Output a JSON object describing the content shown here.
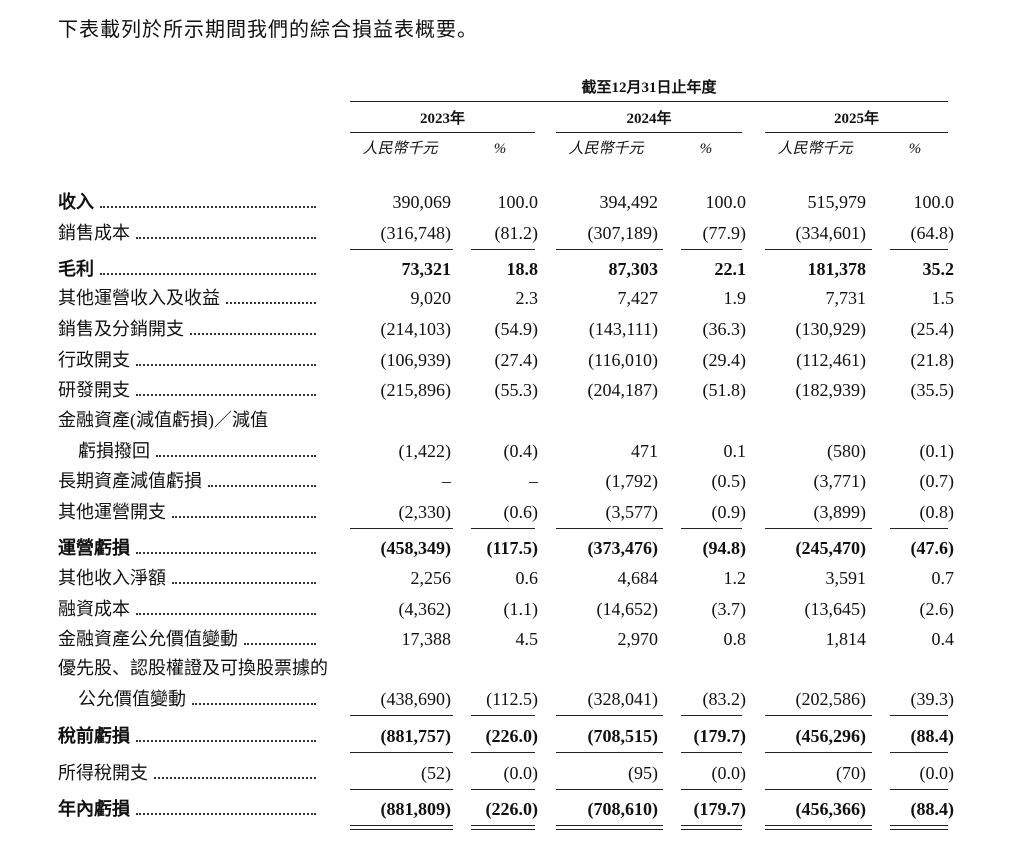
{
  "intro": "下表載列於所示期間我們的綜合損益表概要。",
  "header": {
    "period": "截至12月31日止年度",
    "columns": [
      {
        "year": "2023年",
        "unit": "人民幣千元",
        "pct_unit": "%"
      },
      {
        "year": "2024年",
        "unit": "人民幣千元",
        "pct_unit": "%"
      },
      {
        "year": "2025年",
        "unit": "人民幣千元",
        "pct_unit": "%"
      }
    ]
  },
  "rows": [
    {
      "label": [
        "收入"
      ],
      "values": [
        "390,069",
        "100.0",
        "394,492",
        "100.0",
        "515,979",
        "100.0"
      ]
    },
    {
      "label": [
        "銷售成本"
      ],
      "values": [
        "(316,748)",
        "(81.2)",
        "(307,189)",
        "(77.9)",
        "(334,601)",
        "(64.8)"
      ]
    },
    {
      "label": [
        "毛利"
      ],
      "values": [
        "73,321",
        "18.8",
        "87,303",
        "22.1",
        "181,378",
        "35.2"
      ]
    },
    {
      "label": [
        "其他運營收入及收益"
      ],
      "values": [
        "9,020",
        "2.3",
        "7,427",
        "1.9",
        "7,731",
        "1.5"
      ]
    },
    {
      "label": [
        "銷售及分銷開支"
      ],
      "values": [
        "(214,103)",
        "(54.9)",
        "(143,111)",
        "(36.3)",
        "(130,929)",
        "(25.4)"
      ]
    },
    {
      "label": [
        "行政開支"
      ],
      "values": [
        "(106,939)",
        "(27.4)",
        "(116,010)",
        "(29.4)",
        "(112,461)",
        "(21.8)"
      ]
    },
    {
      "label": [
        "研發開支"
      ],
      "values": [
        "(215,896)",
        "(55.3)",
        "(204,187)",
        "(51.8)",
        "(182,939)",
        "(35.5)"
      ]
    },
    {
      "label": [
        "金融資產(減值虧損)／減值",
        "虧損撥回"
      ],
      "values": [
        "(1,422)",
        "(0.4)",
        "471",
        "0.1",
        "(580)",
        "(0.1)"
      ]
    },
    {
      "label": [
        "長期資產減值虧損"
      ],
      "values": [
        "–",
        "–",
        "(1,792)",
        "(0.5)",
        "(3,771)",
        "(0.7)"
      ]
    },
    {
      "label": [
        "其他運營開支"
      ],
      "values": [
        "(2,330)",
        "(0.6)",
        "(3,577)",
        "(0.9)",
        "(3,899)",
        "(0.8)"
      ]
    },
    {
      "label": [
        "運營虧損"
      ],
      "values": [
        "(458,349)",
        "(117.5)",
        "(373,476)",
        "(94.8)",
        "(245,470)",
        "(47.6)"
      ]
    },
    {
      "label": [
        "其他收入淨額"
      ],
      "values": [
        "2,256",
        "0.6",
        "4,684",
        "1.2",
        "3,591",
        "0.7"
      ]
    },
    {
      "label": [
        "融資成本"
      ],
      "values": [
        "(4,362)",
        "(1.1)",
        "(14,652)",
        "(3.7)",
        "(13,645)",
        "(2.6)"
      ]
    },
    {
      "label": [
        "金融資產公允價值變動"
      ],
      "values": [
        "17,388",
        "4.5",
        "2,970",
        "0.8",
        "1,814",
        "0.4"
      ]
    },
    {
      "label": [
        "優先股、認股權證及可換股票據的",
        "公允價值變動"
      ],
      "values": [
        "(438,690)",
        "(112.5)",
        "(328,041)",
        "(83.2)",
        "(202,586)",
        "(39.3)"
      ]
    },
    {
      "label": [
        "稅前虧損"
      ],
      "values": [
        "(881,757)",
        "(226.0)",
        "(708,515)",
        "(179.7)",
        "(456,296)",
        "(88.4)"
      ]
    },
    {
      "label": [
        "所得稅開支"
      ],
      "values": [
        "(52)",
        "(0.0)",
        "(95)",
        "(0.0)",
        "(70)",
        "(0.0)"
      ]
    },
    {
      "label": [
        "年內虧損"
      ],
      "values": [
        "(881,809)",
        "(226.0)",
        "(708,610)",
        "(179.7)",
        "(456,366)",
        "(88.4)"
      ]
    }
  ]
}
